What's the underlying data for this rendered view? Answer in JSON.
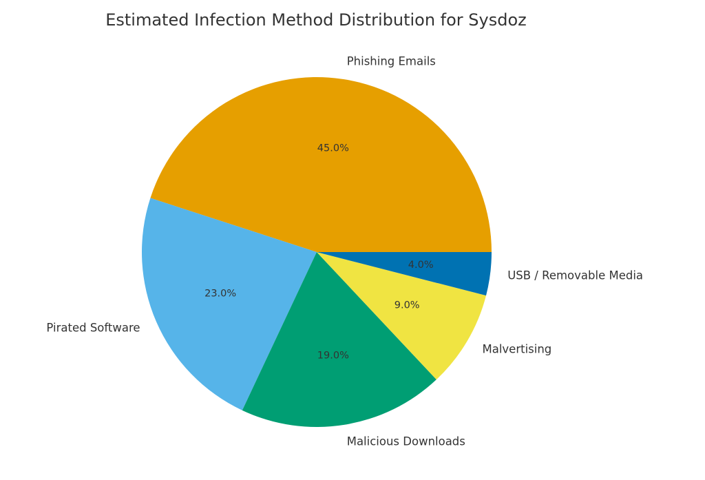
{
  "chart_data": {
    "type": "pie",
    "title": "Estimated Infection Method Distribution for Sysdoz",
    "start_angle_deg": 0,
    "direction": "counterclockwise",
    "slices": [
      {
        "label": "Phishing Emails",
        "value": 45.0,
        "pct_label": "45.0%",
        "color": "#E69F00"
      },
      {
        "label": "Pirated Software",
        "value": 23.0,
        "pct_label": "23.0%",
        "color": "#56B4E9"
      },
      {
        "label": "Malicious Downloads",
        "value": 19.0,
        "pct_label": "19.0%",
        "color": "#009E73"
      },
      {
        "label": "Malvertising",
        "value": 9.0,
        "pct_label": "9.0%",
        "color": "#F0E442"
      },
      {
        "label": "USB / Removable Media",
        "value": 4.0,
        "pct_label": "4.0%",
        "color": "#0072B2"
      }
    ]
  }
}
